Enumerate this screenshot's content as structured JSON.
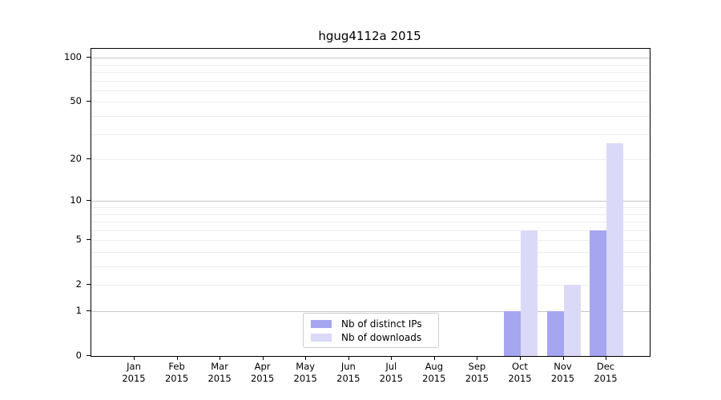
{
  "title": "hgug4112a 2015",
  "chart_data": {
    "type": "bar",
    "title": "hgug4112a 2015",
    "months": [
      "Jan",
      "Feb",
      "Mar",
      "Apr",
      "May",
      "Jun",
      "Jul",
      "Aug",
      "Sep",
      "Oct",
      "Nov",
      "Dec"
    ],
    "year": "2015",
    "series": [
      {
        "name": "Nb of distinct IPs",
        "color": "#a5a5f0",
        "values": [
          0,
          0,
          0,
          0,
          0,
          0,
          0,
          0,
          0,
          1,
          1,
          6
        ]
      },
      {
        "name": "Nb of downloads",
        "color": "#dadaf8",
        "values": [
          0,
          0,
          0,
          0,
          0,
          0,
          0,
          0,
          0,
          6,
          2,
          26
        ]
      }
    ],
    "y_scale": "log1p",
    "y_tick_values": [
      0,
      1,
      2,
      5,
      10,
      20,
      50,
      100
    ],
    "y_tick_labels": [
      "0",
      "1",
      "2",
      "5",
      "10",
      "20",
      "50",
      "100"
    ],
    "major_gridlines": [
      1,
      10,
      100
    ],
    "minor_gridlines": [
      2,
      3,
      4,
      5,
      6,
      7,
      8,
      9,
      20,
      30,
      40,
      50,
      60,
      70,
      80,
      90
    ],
    "ylim": [
      0,
      115
    ],
    "grid": "on",
    "legend_position": "lower-center",
    "colors": {
      "distinct_ips": "#a5a5f0",
      "downloads": "#dadaf8",
      "major_grid": "#c6c6c6",
      "minor_grid": "#ececec",
      "spine": "#000000"
    }
  }
}
